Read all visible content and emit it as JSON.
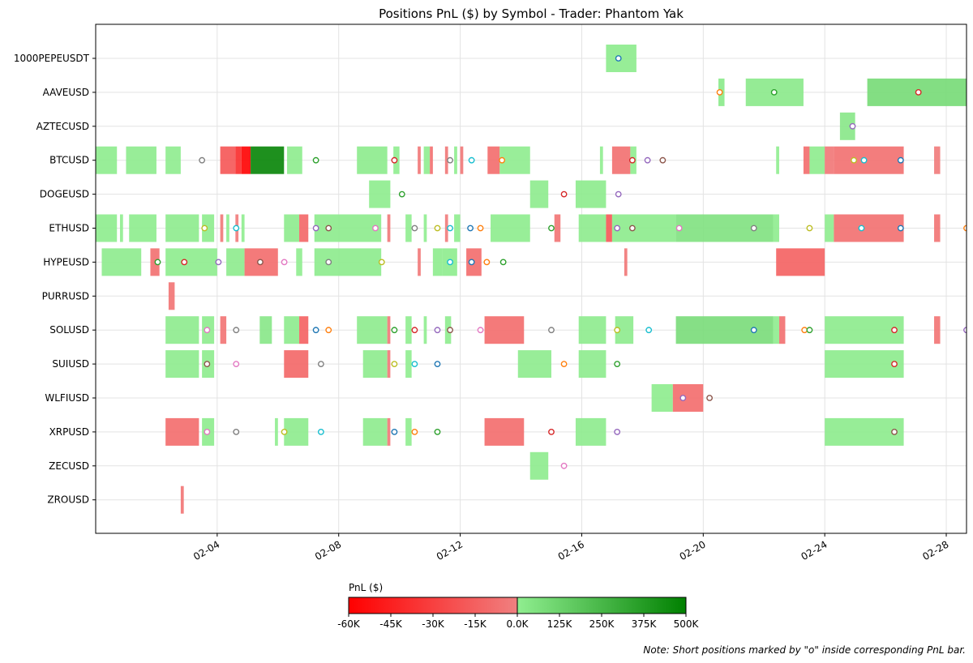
{
  "chart_data": {
    "type": "bar",
    "title": "Positions PnL ($) by Symbol - Trader: Phantom Yak",
    "orientation": "horizontal-timeline",
    "x_axis": {
      "type": "date",
      "range": [
        "2025-01-31",
        "2025-02-28T16:00"
      ],
      "tick_dates": [
        "2025-02-04",
        "2025-02-08",
        "2025-02-12",
        "2025-02-16",
        "2025-02-20",
        "2025-02-24",
        "2025-02-28"
      ],
      "tick_labels": [
        "02-04",
        "02-08",
        "02-12",
        "02-16",
        "02-20",
        "02-24",
        "02-28"
      ]
    },
    "grid": true,
    "symbols": [
      "1000PEPEUSDT",
      "AAVEUSD",
      "AZTECUSD",
      "BTCUSD",
      "DOGEUSD",
      "ETHUSD",
      "HYPEUSD",
      "PURRUSD",
      "SOLUSD",
      "SUIUSD",
      "WLFIUSD",
      "XRPUSD",
      "ZECUSD",
      "ZROUSD"
    ],
    "colorbar": {
      "label": "PnL ($)",
      "ticks": [
        -60000,
        -45000,
        -30000,
        -15000,
        0,
        125000,
        250000,
        375000,
        500000
      ],
      "tick_labels": [
        "-60K",
        "-45K",
        "-30K",
        "-15K",
        "0.0K",
        "125K",
        "250K",
        "375K",
        "500K"
      ],
      "neg_colors": [
        "#ff0000",
        "#f08080"
      ],
      "pos_colors": [
        "#90ee90",
        "#008000"
      ]
    },
    "positions": [
      {
        "symbol": "1000PEPEUSDT",
        "start": 16.8,
        "end": 17.8,
        "pnl": 15000,
        "short": "2025-02-17T05:00"
      },
      {
        "symbol": "AAVEUSD",
        "start": 20.5,
        "end": 20.7,
        "pnl": 20000,
        "short": "2025-02-20T13:00"
      },
      {
        "symbol": "AAVEUSD",
        "start": 21.4,
        "end": 23.3,
        "pnl": 25000,
        "short": "2025-02-22T08:00"
      },
      {
        "symbol": "AAVEUSD",
        "start": 25.4,
        "end": 28.7,
        "pnl": 90000,
        "short": "2025-02-27T02:00"
      },
      {
        "symbol": "AZTECUSD",
        "start": 24.5,
        "end": 25.0,
        "pnl": 30000,
        "short": "2025-02-24T22:00"
      },
      {
        "symbol": "BTCUSD",
        "start": 0.0,
        "end": 0.7,
        "pnl": 10000
      },
      {
        "symbol": "BTCUSD",
        "start": 1.0,
        "end": 2.0,
        "pnl": 12000
      },
      {
        "symbol": "BTCUSD",
        "start": 2.3,
        "end": 2.8,
        "pnl": 8000,
        "short": "2025-02-03T12:00"
      },
      {
        "symbol": "BTCUSD",
        "start": 4.1,
        "end": 4.6,
        "pnl": -20000
      },
      {
        "symbol": "BTCUSD",
        "start": 4.6,
        "end": 4.8,
        "pnl": -40000
      },
      {
        "symbol": "BTCUSD",
        "start": 4.8,
        "end": 5.1,
        "pnl": -60000
      },
      {
        "symbol": "BTCUSD",
        "start": 5.1,
        "end": 6.2,
        "pnl": 480000
      },
      {
        "symbol": "BTCUSD",
        "start": 6.3,
        "end": 6.8,
        "pnl": 10000,
        "short": "2025-02-07T06:00"
      },
      {
        "symbol": "BTCUSD",
        "start": 8.6,
        "end": 9.6,
        "pnl": 15000,
        "short": "2025-02-09T20:00"
      },
      {
        "symbol": "BTCUSD",
        "start": 9.8,
        "end": 10.0,
        "pnl": 5000
      },
      {
        "symbol": "BTCUSD",
        "start": 10.6,
        "end": 10.7,
        "pnl": -5000
      },
      {
        "symbol": "BTCUSD",
        "start": 10.8,
        "end": 11.0,
        "pnl": 3000
      },
      {
        "symbol": "BTCUSD",
        "start": 11.0,
        "end": 11.1,
        "pnl": -8000,
        "short": "2025-02-11T16:00"
      },
      {
        "symbol": "BTCUSD",
        "start": 11.5,
        "end": 11.6,
        "pnl": -4000
      },
      {
        "symbol": "BTCUSD",
        "start": 11.8,
        "end": 11.9,
        "pnl": 3000,
        "short": "2025-02-12T09:00"
      },
      {
        "symbol": "BTCUSD",
        "start": 12.0,
        "end": 12.1,
        "pnl": -4000
      },
      {
        "symbol": "BTCUSD",
        "start": 12.9,
        "end": 13.3,
        "pnl": -10000,
        "short": "2025-02-13T09:00"
      },
      {
        "symbol": "BTCUSD",
        "start": 13.3,
        "end": 14.3,
        "pnl": 8000
      },
      {
        "symbol": "BTCUSD",
        "start": 16.6,
        "end": 16.7,
        "pnl": 4000,
        "short": "2025-02-17T16:00"
      },
      {
        "symbol": "BTCUSD",
        "start": 17.0,
        "end": 17.6,
        "pnl": -8000,
        "short": "2025-02-18T04:00"
      },
      {
        "symbol": "BTCUSD",
        "start": 17.6,
        "end": 17.8,
        "pnl": 4000,
        "short": "2025-02-18T16:00"
      },
      {
        "symbol": "BTCUSD",
        "start": 22.4,
        "end": 22.5,
        "pnl": 4000
      },
      {
        "symbol": "BTCUSD",
        "start": 23.3,
        "end": 23.5,
        "pnl": -10000
      },
      {
        "symbol": "BTCUSD",
        "start": 23.5,
        "end": 24.0,
        "pnl": 10000,
        "short": "2025-02-24T23:00"
      },
      {
        "symbol": "BTCUSD",
        "start": 24.0,
        "end": 24.3,
        "pnl": -5000,
        "short": "2025-02-25T07:00"
      },
      {
        "symbol": "BTCUSD",
        "start": 24.3,
        "end": 26.6,
        "pnl": -8000,
        "short": "2025-02-26T12:00"
      },
      {
        "symbol": "BTCUSD",
        "start": 27.6,
        "end": 27.8,
        "pnl": -3000
      },
      {
        "symbol": "DOGEUSD",
        "start": 9.0,
        "end": 9.7,
        "pnl": 10000,
        "short": "2025-02-10T02:00"
      },
      {
        "symbol": "DOGEUSD",
        "start": 14.3,
        "end": 14.9,
        "pnl": 12000,
        "short": "2025-02-15T10:00"
      },
      {
        "symbol": "DOGEUSD",
        "start": 15.8,
        "end": 16.8,
        "pnl": 15000,
        "short": "2025-02-17T05:00"
      },
      {
        "symbol": "ETHUSD",
        "start": 0.0,
        "end": 0.7,
        "pnl": 10000
      },
      {
        "symbol": "ETHUSD",
        "start": 0.8,
        "end": 0.9,
        "pnl": 3000
      },
      {
        "symbol": "ETHUSD",
        "start": 1.1,
        "end": 2.0,
        "pnl": 10000
      },
      {
        "symbol": "ETHUSD",
        "start": 2.3,
        "end": 3.4,
        "pnl": 12000,
        "short": "2025-02-03T14:00"
      },
      {
        "symbol": "ETHUSD",
        "start": 3.5,
        "end": 3.9,
        "pnl": 10000,
        "short": "2025-02-04T15:00"
      },
      {
        "symbol": "ETHUSD",
        "start": 4.1,
        "end": 4.2,
        "pnl": -4000
      },
      {
        "symbol": "ETHUSD",
        "start": 4.3,
        "end": 4.4,
        "pnl": 3000
      },
      {
        "symbol": "ETHUSD",
        "start": 4.6,
        "end": 4.7,
        "pnl": -3000
      },
      {
        "symbol": "ETHUSD",
        "start": 4.8,
        "end": 4.9,
        "pnl": 3000
      },
      {
        "symbol": "ETHUSD",
        "start": 6.2,
        "end": 6.7,
        "pnl": 12000,
        "short": "2025-02-07T06:00"
      },
      {
        "symbol": "ETHUSD",
        "start": 6.7,
        "end": 7.0,
        "pnl": -12000,
        "short": "2025-02-07T16:00"
      },
      {
        "symbol": "ETHUSD",
        "start": 7.2,
        "end": 9.4,
        "pnl": 15000,
        "short": "2025-02-09T05:00"
      },
      {
        "symbol": "ETHUSD",
        "start": 9.6,
        "end": 9.7,
        "pnl": -4000,
        "short": "2025-02-10T12:00"
      },
      {
        "symbol": "ETHUSD",
        "start": 10.2,
        "end": 10.4,
        "pnl": 4000,
        "short": "2025-02-11T06:00"
      },
      {
        "symbol": "ETHUSD",
        "start": 10.8,
        "end": 10.9,
        "pnl": 3000,
        "short": "2025-02-11T16:00"
      },
      {
        "symbol": "ETHUSD",
        "start": 11.5,
        "end": 11.6,
        "pnl": -3000,
        "short": "2025-02-12T08:00"
      },
      {
        "symbol": "ETHUSD",
        "start": 11.8,
        "end": 12.0,
        "pnl": 5000,
        "short": "2025-02-12T16:00"
      },
      {
        "symbol": "ETHUSD",
        "start": 13.0,
        "end": 14.3,
        "pnl": 10000,
        "short": "2025-02-15T00:00"
      },
      {
        "symbol": "ETHUSD",
        "start": 15.1,
        "end": 15.3,
        "pnl": -6000
      },
      {
        "symbol": "ETHUSD",
        "start": 15.9,
        "end": 16.8,
        "pnl": 12000,
        "short": "2025-02-17T04:00"
      },
      {
        "symbol": "ETHUSD",
        "start": 16.8,
        "end": 17.0,
        "pnl": -20000,
        "short": "2025-02-17T16:00"
      },
      {
        "symbol": "ETHUSD",
        "start": 17.0,
        "end": 19.1,
        "pnl": 15000,
        "short": "2025-02-19T05:00"
      },
      {
        "symbol": "ETHUSD",
        "start": 19.1,
        "end": 22.3,
        "pnl": 60000,
        "short": "2025-02-21T16:00"
      },
      {
        "symbol": "ETHUSD",
        "start": 22.3,
        "end": 22.5,
        "pnl": 8000,
        "short": "2025-02-23T12:00"
      },
      {
        "symbol": "ETHUSD",
        "start": 24.0,
        "end": 24.3,
        "pnl": 8000,
        "short": "2025-02-25T05:00"
      },
      {
        "symbol": "ETHUSD",
        "start": 24.3,
        "end": 26.6,
        "pnl": -8000,
        "short": "2025-02-26T12:00"
      },
      {
        "symbol": "ETHUSD",
        "start": 27.6,
        "end": 27.8,
        "pnl": -6000,
        "short": "2025-02-28T16:00"
      },
      {
        "symbol": "HYPEUSD",
        "start": 0.2,
        "end": 1.5,
        "pnl": 12000,
        "short": "2025-02-02T01:00"
      },
      {
        "symbol": "HYPEUSD",
        "start": 1.8,
        "end": 2.1,
        "pnl": -8000,
        "short": "2025-02-02T22:00"
      },
      {
        "symbol": "HYPEUSD",
        "start": 2.3,
        "end": 4.0,
        "pnl": 10000,
        "short": "2025-02-04T01:00"
      },
      {
        "symbol": "HYPEUSD",
        "start": 4.3,
        "end": 4.9,
        "pnl": 12000,
        "short": "2025-02-05T10:00"
      },
      {
        "symbol": "HYPEUSD",
        "start": 4.9,
        "end": 6.0,
        "pnl": -10000,
        "short": "2025-02-06T05:00"
      },
      {
        "symbol": "HYPEUSD",
        "start": 6.6,
        "end": 6.8,
        "pnl": 5000,
        "short": "2025-02-07T16:00"
      },
      {
        "symbol": "HYPEUSD",
        "start": 7.2,
        "end": 9.4,
        "pnl": 15000,
        "short": "2025-02-09T10:00"
      },
      {
        "symbol": "HYPEUSD",
        "start": 10.6,
        "end": 10.7,
        "pnl": -4000,
        "short": "2025-02-11T16:00"
      },
      {
        "symbol": "HYPEUSD",
        "start": 11.1,
        "end": 11.4,
        "pnl": 10000,
        "short": "2025-02-12T09:00"
      },
      {
        "symbol": "HYPEUSD",
        "start": 11.4,
        "end": 11.9,
        "pnl": 10000,
        "short": "2025-02-12T21:00"
      },
      {
        "symbol": "HYPEUSD",
        "start": 12.2,
        "end": 12.7,
        "pnl": -10000,
        "short": "2025-02-13T10:00"
      },
      {
        "symbol": "HYPEUSD",
        "start": 17.4,
        "end": 17.5,
        "pnl": -4000
      },
      {
        "symbol": "HYPEUSD",
        "start": 22.4,
        "end": 24.0,
        "pnl": -15000
      },
      {
        "symbol": "PURRUSD",
        "start": 2.4,
        "end": 2.6,
        "pnl": -6000
      },
      {
        "symbol": "SOLUSD",
        "start": 2.3,
        "end": 3.4,
        "pnl": 12000,
        "short": "2025-02-03T16:00"
      },
      {
        "symbol": "SOLUSD",
        "start": 3.5,
        "end": 3.9,
        "pnl": 10000,
        "short": "2025-02-04T15:00"
      },
      {
        "symbol": "SOLUSD",
        "start": 4.1,
        "end": 4.3,
        "pnl": -6000
      },
      {
        "symbol": "SOLUSD",
        "start": 5.4,
        "end": 5.8,
        "pnl": 30000
      },
      {
        "symbol": "SOLUSD",
        "start": 6.2,
        "end": 6.7,
        "pnl": 12000,
        "short": "2025-02-07T06:00"
      },
      {
        "symbol": "SOLUSD",
        "start": 6.7,
        "end": 7.0,
        "pnl": -15000,
        "short": "2025-02-07T16:00"
      },
      {
        "symbol": "SOLUSD",
        "start": 8.6,
        "end": 9.6,
        "pnl": 12000,
        "short": "2025-02-09T20:00"
      },
      {
        "symbol": "SOLUSD",
        "start": 9.6,
        "end": 9.7,
        "pnl": -4000,
        "short": "2025-02-10T12:00"
      },
      {
        "symbol": "SOLUSD",
        "start": 10.2,
        "end": 10.4,
        "pnl": 5000,
        "short": "2025-02-11T06:00"
      },
      {
        "symbol": "SOLUSD",
        "start": 10.8,
        "end": 10.9,
        "pnl": 4000,
        "short": "2025-02-11T16:00"
      },
      {
        "symbol": "SOLUSD",
        "start": 11.5,
        "end": 11.7,
        "pnl": 8000,
        "short": "2025-02-12T16:00"
      },
      {
        "symbol": "SOLUSD",
        "start": 12.8,
        "end": 14.1,
        "pnl": -10000,
        "short": "2025-02-15T00:00"
      },
      {
        "symbol": "SOLUSD",
        "start": 15.9,
        "end": 16.8,
        "pnl": 12000,
        "short": "2025-02-17T04:00"
      },
      {
        "symbol": "SOLUSD",
        "start": 17.1,
        "end": 17.7,
        "pnl": 12000,
        "short": "2025-02-18T05:00"
      },
      {
        "symbol": "SOLUSD",
        "start": 19.1,
        "end": 22.3,
        "pnl": 80000,
        "short": "2025-02-21T16:00"
      },
      {
        "symbol": "SOLUSD",
        "start": 22.3,
        "end": 22.5,
        "pnl": 8000,
        "short": "2025-02-23T08:00"
      },
      {
        "symbol": "SOLUSD",
        "start": 22.5,
        "end": 22.7,
        "pnl": -8000,
        "short": "2025-02-23T12:00"
      },
      {
        "symbol": "SOLUSD",
        "start": 24.0,
        "end": 26.6,
        "pnl": 15000,
        "short": "2025-02-26T07:00"
      },
      {
        "symbol": "SOLUSD",
        "start": 27.6,
        "end": 27.8,
        "pnl": -6000,
        "short": "2025-02-28T16:00"
      },
      {
        "symbol": "SUIUSD",
        "start": 2.3,
        "end": 3.4,
        "pnl": 12000,
        "short": "2025-02-03T16:00"
      },
      {
        "symbol": "SUIUSD",
        "start": 3.5,
        "end": 3.9,
        "pnl": 10000,
        "short": "2025-02-04T15:00"
      },
      {
        "symbol": "SUIUSD",
        "start": 6.2,
        "end": 7.0,
        "pnl": -12000,
        "short": "2025-02-07T10:00"
      },
      {
        "symbol": "SUIUSD",
        "start": 8.8,
        "end": 9.6,
        "pnl": 12000,
        "short": "2025-02-09T20:00"
      },
      {
        "symbol": "SUIUSD",
        "start": 9.6,
        "end": 9.7,
        "pnl": -4000,
        "short": "2025-02-10T12:00"
      },
      {
        "symbol": "SUIUSD",
        "start": 10.2,
        "end": 10.4,
        "pnl": 4000,
        "short": "2025-02-11T06:00"
      },
      {
        "symbol": "SUIUSD",
        "start": 13.9,
        "end": 15.0,
        "pnl": 12000,
        "short": "2025-02-15T10:00"
      },
      {
        "symbol": "SUIUSD",
        "start": 15.9,
        "end": 16.8,
        "pnl": 12000,
        "short": "2025-02-17T04:00"
      },
      {
        "symbol": "SUIUSD",
        "start": 24.0,
        "end": 26.6,
        "pnl": 15000,
        "short": "2025-02-26T07:00"
      },
      {
        "symbol": "WLFIUSD",
        "start": 18.3,
        "end": 19.0,
        "pnl": 10000,
        "short": "2025-02-19T08:00"
      },
      {
        "symbol": "WLFIUSD",
        "start": 19.0,
        "end": 20.0,
        "pnl": -10000,
        "short": "2025-02-20T05:00"
      },
      {
        "symbol": "XRPUSD",
        "start": 2.3,
        "end": 3.4,
        "pnl": -10000,
        "short": "2025-02-03T16:00"
      },
      {
        "symbol": "XRPUSD",
        "start": 3.5,
        "end": 3.9,
        "pnl": 10000,
        "short": "2025-02-04T15:00"
      },
      {
        "symbol": "XRPUSD",
        "start": 5.9,
        "end": 6.0,
        "pnl": 4000,
        "short": "2025-02-06T05:00"
      },
      {
        "symbol": "XRPUSD",
        "start": 6.2,
        "end": 7.0,
        "pnl": 12000,
        "short": "2025-02-07T10:00"
      },
      {
        "symbol": "XRPUSD",
        "start": 8.8,
        "end": 9.6,
        "pnl": 12000,
        "short": "2025-02-09T20:00"
      },
      {
        "symbol": "XRPUSD",
        "start": 9.6,
        "end": 9.7,
        "pnl": -4000,
        "short": "2025-02-10T12:00"
      },
      {
        "symbol": "XRPUSD",
        "start": 10.2,
        "end": 10.4,
        "pnl": 4000,
        "short": "2025-02-11T06:00"
      },
      {
        "symbol": "XRPUSD",
        "start": 12.8,
        "end": 14.1,
        "pnl": -10000,
        "short": "2025-02-15T00:00"
      },
      {
        "symbol": "XRPUSD",
        "start": 15.8,
        "end": 16.8,
        "pnl": 12000,
        "short": "2025-02-17T04:00"
      },
      {
        "symbol": "XRPUSD",
        "start": 24.0,
        "end": 26.6,
        "pnl": 15000,
        "short": "2025-02-26T07:00"
      },
      {
        "symbol": "ZECUSD",
        "start": 14.3,
        "end": 14.9,
        "pnl": 12000,
        "short": "2025-02-15T10:00"
      },
      {
        "symbol": "ZROUSD",
        "start": 2.8,
        "end": 2.9,
        "pnl": -6000
      }
    ],
    "note": "Note: Short positions marked by \"o\" inside corresponding PnL bar."
  }
}
